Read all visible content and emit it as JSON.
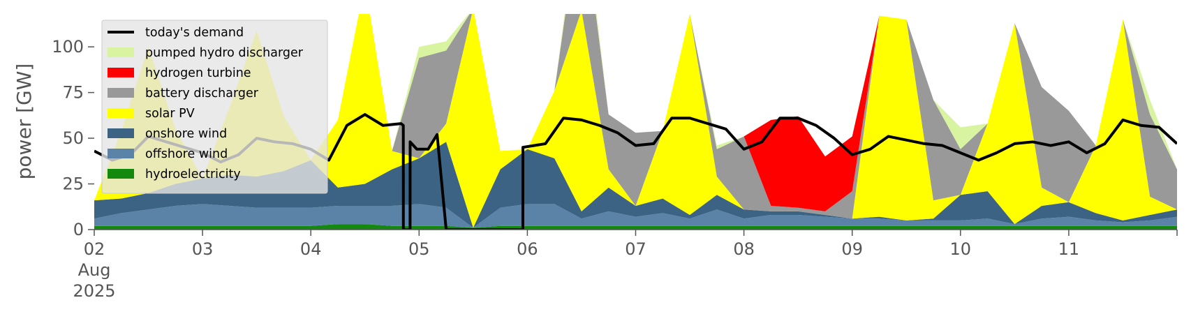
{
  "chart_data": {
    "type": "area",
    "ylabel": "power [GW]",
    "ylim": [
      0,
      118
    ],
    "yticks": [
      0,
      25,
      50,
      75,
      100
    ],
    "xlim": [
      "2025-08-02",
      "2025-08-12"
    ],
    "xticks": [
      {
        "date": "2025-08-02",
        "lines": [
          "02",
          "Aug",
          "2025"
        ]
      },
      {
        "date": "2025-08-03",
        "lines": [
          "03"
        ]
      },
      {
        "date": "2025-08-04",
        "lines": [
          "04"
        ]
      },
      {
        "date": "2025-08-05",
        "lines": [
          "05"
        ]
      },
      {
        "date": "2025-08-06",
        "lines": [
          "06"
        ]
      },
      {
        "date": "2025-08-07",
        "lines": [
          "07"
        ]
      },
      {
        "date": "2025-08-08",
        "lines": [
          "08"
        ]
      },
      {
        "date": "2025-08-09",
        "lines": [
          "09"
        ]
      },
      {
        "date": "2025-08-10",
        "lines": [
          "10"
        ]
      },
      {
        "date": "2025-08-11",
        "lines": [
          "11"
        ]
      }
    ],
    "legend_position": "top-left",
    "stack_order": [
      "hydroelectricity",
      "offshore wind",
      "onshore wind",
      "solar PV",
      "battery discharger",
      "hydrogen turbine",
      "pumped hydro discharger"
    ],
    "legend_order": [
      "today's demand",
      "pumped hydro discharger",
      "hydrogen turbine",
      "battery discharger",
      "solar PV",
      "onshore wind",
      "offshore wind",
      "hydroelectricity"
    ],
    "colors": {
      "today's demand": "#000000",
      "pumped hydro discharger": "#d8f4a0",
      "hydrogen turbine": "#ff0000",
      "battery discharger": "#999999",
      "solar PV": "#ffff00",
      "onshore wind": "#3c6384",
      "offshore wind": "#5b83a8",
      "hydroelectricity": "#138a0e"
    },
    "x": [
      "2025-08-02 00:00",
      "2025-08-02 06:00",
      "2025-08-02 12:00",
      "2025-08-02 18:00",
      "2025-08-03 00:00",
      "2025-08-03 06:00",
      "2025-08-03 12:00",
      "2025-08-03 18:00",
      "2025-08-04 00:00",
      "2025-08-04 06:00",
      "2025-08-04 12:00",
      "2025-08-04 18:00",
      "2025-08-05 00:00",
      "2025-08-05 06:00",
      "2025-08-05 12:00",
      "2025-08-05 18:00",
      "2025-08-06 00:00",
      "2025-08-06 06:00",
      "2025-08-06 12:00",
      "2025-08-06 18:00",
      "2025-08-07 00:00",
      "2025-08-07 06:00",
      "2025-08-07 12:00",
      "2025-08-07 18:00",
      "2025-08-08 00:00",
      "2025-08-08 06:00",
      "2025-08-08 12:00",
      "2025-08-08 18:00",
      "2025-08-09 00:00",
      "2025-08-09 06:00",
      "2025-08-09 12:00",
      "2025-08-09 18:00",
      "2025-08-10 00:00",
      "2025-08-10 06:00",
      "2025-08-10 12:00",
      "2025-08-10 18:00",
      "2025-08-11 00:00",
      "2025-08-11 06:00",
      "2025-08-11 12:00",
      "2025-08-11 18:00",
      "2025-08-12 00:00"
    ],
    "series": [
      {
        "name": "hydroelectricity",
        "values": [
          2,
          2,
          2,
          2,
          2,
          2,
          2,
          2,
          2,
          3,
          3,
          2,
          2,
          2,
          1,
          2,
          2,
          2,
          2,
          2,
          2,
          2,
          2,
          2,
          2,
          2,
          2,
          2,
          2,
          2,
          2,
          2,
          2,
          2,
          2,
          2,
          2,
          2,
          2,
          2,
          2
        ]
      },
      {
        "name": "offshore wind",
        "values": [
          4,
          7,
          9,
          11,
          12,
          11,
          10,
          10,
          10,
          10,
          10,
          11,
          12,
          10,
          0,
          10,
          12,
          12,
          4,
          8,
          5,
          7,
          4,
          9,
          4,
          6,
          6,
          5,
          4,
          4,
          3,
          3,
          3,
          4,
          1,
          4,
          5,
          3,
          2,
          3,
          5
        ]
      },
      {
        "name": "onshore wind",
        "values": [
          10,
          8,
          9,
          12,
          14,
          17,
          17,
          20,
          26,
          10,
          12,
          20,
          25,
          36,
          0,
          21,
          30,
          25,
          4,
          13,
          6,
          8,
          2,
          8,
          5,
          2,
          2,
          1,
          0,
          1,
          0,
          1,
          14,
          15,
          0,
          7,
          8,
          4,
          1,
          3,
          4
        ]
      },
      {
        "name": "solar PV",
        "values": [
          0,
          37,
          80,
          30,
          0,
          37,
          80,
          30,
          0,
          37,
          110,
          10,
          0,
          10,
          120,
          10,
          0,
          37,
          110,
          10,
          0,
          37,
          110,
          10,
          0,
          0,
          0,
          0,
          0,
          110,
          110,
          10,
          0,
          37,
          110,
          10,
          0,
          37,
          110,
          10,
          0
        ]
      },
      {
        "name": "battery discharger",
        "values": [
          0,
          0,
          0,
          0,
          0,
          0,
          0,
          0,
          0,
          0,
          0,
          0,
          55,
          40,
          0,
          0,
          0,
          0,
          60,
          30,
          40,
          0,
          0,
          15,
          40,
          3,
          2,
          2,
          15,
          0,
          0,
          55,
          25,
          0,
          0,
          55,
          50,
          0,
          0,
          45,
          22
        ]
      },
      {
        "name": "hydrogen turbine",
        "values": [
          0,
          0,
          0,
          0,
          0,
          0,
          0,
          0,
          0,
          0,
          0,
          0,
          0,
          0,
          0,
          0,
          0,
          0,
          0,
          0,
          0,
          0,
          0,
          0,
          0,
          47,
          50,
          30,
          30,
          0,
          0,
          0,
          0,
          0,
          0,
          0,
          0,
          0,
          0,
          0,
          0
        ]
      },
      {
        "name": "pumped hydro discharger",
        "values": [
          0,
          0,
          0,
          0,
          0,
          0,
          0,
          0,
          0,
          0,
          0,
          0,
          6,
          5,
          0,
          0,
          0,
          0,
          8,
          0,
          0,
          0,
          0,
          2,
          0,
          0,
          0,
          0,
          0,
          0,
          0,
          0,
          12,
          0,
          0,
          0,
          0,
          0,
          0,
          8,
          0
        ]
      }
    ],
    "demand": {
      "name": "today's demand",
      "x": [
        "2025-08-02 00:00",
        "2025-08-02 04:00",
        "2025-08-02 08:00",
        "2025-08-02 12:00",
        "2025-08-02 16:00",
        "2025-08-02 20:00",
        "2025-08-03 00:00",
        "2025-08-03 04:00",
        "2025-08-03 08:00",
        "2025-08-03 12:00",
        "2025-08-03 16:00",
        "2025-08-03 20:00",
        "2025-08-04 00:00",
        "2025-08-04 04:00",
        "2025-08-04 08:00",
        "2025-08-04 12:00",
        "2025-08-04 16:00",
        "2025-08-04 20:00",
        "2025-08-04 20:30",
        "2025-08-04 20:31",
        "2025-08-04 22:00",
        "2025-08-04 22:01",
        "2025-08-04 23:30",
        "2025-08-05 02:00",
        "2025-08-05 04:00",
        "2025-08-05 06:00",
        "2025-08-05 07:00",
        "2025-08-05 07:30",
        "2025-08-05 07:31",
        "2025-08-05 23:00",
        "2025-08-05 23:01",
        "2025-08-06 04:00",
        "2025-08-06 08:00",
        "2025-08-06 12:00",
        "2025-08-06 16:00",
        "2025-08-06 20:00",
        "2025-08-07 00:00",
        "2025-08-07 04:00",
        "2025-08-07 08:00",
        "2025-08-07 12:00",
        "2025-08-07 16:00",
        "2025-08-07 20:00",
        "2025-08-08 00:00",
        "2025-08-08 04:00",
        "2025-08-08 08:00",
        "2025-08-08 12:00",
        "2025-08-08 16:00",
        "2025-08-08 20:00",
        "2025-08-09 00:00",
        "2025-08-09 04:00",
        "2025-08-09 08:00",
        "2025-08-09 12:00",
        "2025-08-09 16:00",
        "2025-08-09 20:00",
        "2025-08-10 00:00",
        "2025-08-10 04:00",
        "2025-08-10 08:00",
        "2025-08-10 12:00",
        "2025-08-10 16:00",
        "2025-08-10 20:00",
        "2025-08-11 00:00",
        "2025-08-11 04:00",
        "2025-08-11 08:00",
        "2025-08-11 12:00",
        "2025-08-11 16:00",
        "2025-08-11 20:00",
        "2025-08-12 00:00"
      ],
      "values": [
        43,
        38,
        41,
        51,
        48,
        45,
        42,
        37,
        41,
        50,
        48,
        47,
        44,
        38,
        57,
        63,
        57,
        58,
        57,
        0,
        0,
        48,
        44,
        44,
        52,
        0,
        0,
        0,
        0,
        0,
        45,
        47,
        61,
        60,
        57,
        53,
        46,
        47,
        61,
        61,
        58,
        55,
        44,
        48,
        61,
        61,
        57,
        50,
        41,
        44,
        51,
        49,
        47,
        46,
        42,
        38,
        42,
        47,
        48,
        46,
        48,
        42,
        47,
        60,
        57,
        56,
        47
      ]
    }
  }
}
